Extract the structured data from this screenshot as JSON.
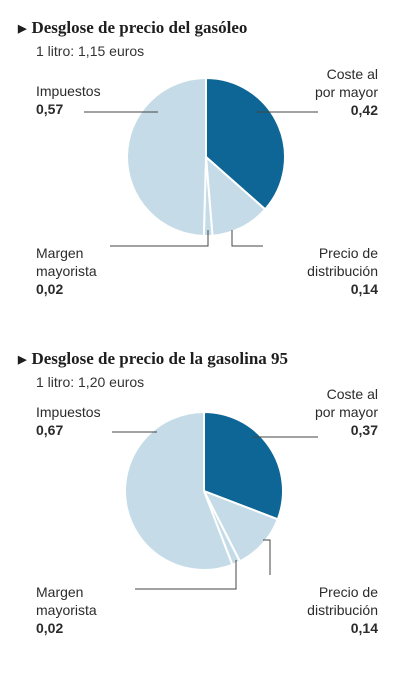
{
  "charts": [
    {
      "title": "Desglose de precio del gasóleo",
      "subtitle": "1 litro: 1,15 euros",
      "labels": {
        "coste": [
          "Coste al",
          "por mayor"
        ],
        "coste_value": "0,42",
        "impuestos": [
          "Impuestos"
        ],
        "impuestos_value": "0,57",
        "margen": [
          "Margen",
          "mayorista"
        ],
        "margen_value": "0,02",
        "distribucion": [
          "Precio de",
          "distribución"
        ],
        "distribucion_value": "0,14"
      }
    },
    {
      "title": "Desglose de precio de la gasolina 95",
      "subtitle": "1 litro: 1,20 euros",
      "labels": {
        "coste": [
          "Coste al",
          "por mayor"
        ],
        "coste_value": "0,37",
        "impuestos": [
          "Impuestos"
        ],
        "impuestos_value": "0,67",
        "margen": [
          "Margen",
          "mayorista"
        ],
        "margen_value": "0,02",
        "distribucion": [
          "Precio de",
          "distribución"
        ],
        "distribucion_value": "0,14"
      }
    }
  ],
  "chart_data": [
    {
      "type": "pie",
      "title": "Desglose de precio del gasóleo",
      "subtitle": "1 litro: 1,15 euros",
      "categories": [
        "Coste al por mayor",
        "Precio de distribución",
        "Margen mayorista",
        "Impuestos"
      ],
      "values": [
        0.42,
        0.14,
        0.02,
        0.57
      ],
      "colors": [
        "#0e6696",
        "#c5dce8",
        "#c5dce8",
        "#c5dce8"
      ]
    },
    {
      "type": "pie",
      "title": "Desglose de precio de la gasolina 95",
      "subtitle": "1 litro: 1,20 euros",
      "categories": [
        "Coste al por mayor",
        "Precio de distribución",
        "Margen mayorista",
        "Impuestos"
      ],
      "values": [
        0.37,
        0.14,
        0.02,
        0.67
      ],
      "colors": [
        "#0e6696",
        "#c5dce8",
        "#c5dce8",
        "#c5dce8"
      ]
    }
  ]
}
